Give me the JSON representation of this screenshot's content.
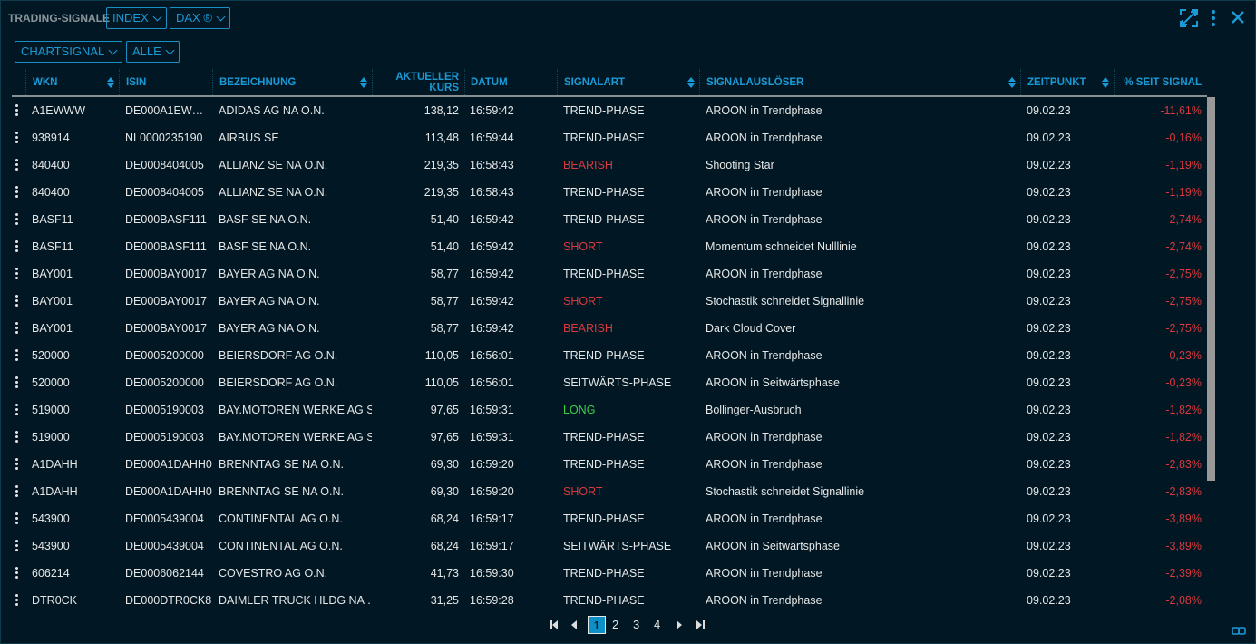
{
  "header": {
    "title": "TRADING-SIGNALE",
    "filters": [
      "INDEX",
      "DAX ®"
    ],
    "subfilters": [
      "CHARTSIGNAL",
      "ALLE"
    ],
    "icons": [
      "expand-icon",
      "more-vertical-icon",
      "close-icon"
    ]
  },
  "colors": {
    "accent": "#1a9ad6",
    "negative": "#d9383d",
    "positive": "#3ccf48",
    "background": "#011824"
  },
  "table": {
    "columns": [
      "WKN",
      "ISIN",
      "BEZEICHNUNG",
      "AKTUELLER KURS",
      "DATUM",
      "SIGNALART",
      "SIGNALAUSLÖSER",
      "ZEITPUNKT",
      "% SEIT SIGNAL"
    ],
    "rows": [
      [
        "A1EWWW",
        "DE000A1EW…",
        "ADIDAS AG NA O.N.",
        "138,12",
        "16:59:42",
        "TREND-PHASE",
        "AROON in Trendphase",
        "09.02.23",
        "-11,61%"
      ],
      [
        "938914",
        "NL0000235190",
        "AIRBUS SE",
        "113,48",
        "16:59:44",
        "TREND-PHASE",
        "AROON in Trendphase",
        "09.02.23",
        "-0,16%"
      ],
      [
        "840400",
        "DE0008404005",
        "ALLIANZ SE NA O.N.",
        "219,35",
        "16:58:43",
        "BEARISH",
        "Shooting Star",
        "09.02.23",
        "-1,19%"
      ],
      [
        "840400",
        "DE0008404005",
        "ALLIANZ SE NA O.N.",
        "219,35",
        "16:58:43",
        "TREND-PHASE",
        "AROON in Trendphase",
        "09.02.23",
        "-1,19%"
      ],
      [
        "BASF11",
        "DE000BASF111",
        "BASF SE NA O.N.",
        "51,40",
        "16:59:42",
        "TREND-PHASE",
        "AROON in Trendphase",
        "09.02.23",
        "-2,74%"
      ],
      [
        "BASF11",
        "DE000BASF111",
        "BASF SE NA O.N.",
        "51,40",
        "16:59:42",
        "SHORT",
        "Momentum schneidet Nulllinie",
        "09.02.23",
        "-2,74%"
      ],
      [
        "BAY001",
        "DE000BAY0017",
        "BAYER AG NA O.N.",
        "58,77",
        "16:59:42",
        "TREND-PHASE",
        "AROON in Trendphase",
        "09.02.23",
        "-2,75%"
      ],
      [
        "BAY001",
        "DE000BAY0017",
        "BAYER AG NA O.N.",
        "58,77",
        "16:59:42",
        "SHORT",
        "Stochastik schneidet Signallinie",
        "09.02.23",
        "-2,75%"
      ],
      [
        "BAY001",
        "DE000BAY0017",
        "BAYER AG NA O.N.",
        "58,77",
        "16:59:42",
        "BEARISH",
        "Dark Cloud Cover",
        "09.02.23",
        "-2,75%"
      ],
      [
        "520000",
        "DE0005200000",
        "BEIERSDORF AG O.N.",
        "110,05",
        "16:56:01",
        "TREND-PHASE",
        "AROON in Trendphase",
        "09.02.23",
        "-0,23%"
      ],
      [
        "520000",
        "DE0005200000",
        "BEIERSDORF AG O.N.",
        "110,05",
        "16:56:01",
        "SEITWÄRTS-PHASE",
        "AROON in Seitwärtsphase",
        "09.02.23",
        "-0,23%"
      ],
      [
        "519000",
        "DE0005190003",
        "BAY.MOTOREN WERKE AG ST",
        "97,65",
        "16:59:31",
        "LONG",
        "Bollinger-Ausbruch",
        "09.02.23",
        "-1,82%"
      ],
      [
        "519000",
        "DE0005190003",
        "BAY.MOTOREN WERKE AG ST",
        "97,65",
        "16:59:31",
        "TREND-PHASE",
        "AROON in Trendphase",
        "09.02.23",
        "-1,82%"
      ],
      [
        "A1DAHH",
        "DE000A1DAHH0",
        "BRENNTAG SE NA O.N.",
        "69,30",
        "16:59:20",
        "TREND-PHASE",
        "AROON in Trendphase",
        "09.02.23",
        "-2,83%"
      ],
      [
        "A1DAHH",
        "DE000A1DAHH0",
        "BRENNTAG SE NA O.N.",
        "69,30",
        "16:59:20",
        "SHORT",
        "Stochastik schneidet Signallinie",
        "09.02.23",
        "-2,83%"
      ],
      [
        "543900",
        "DE0005439004",
        "CONTINENTAL AG O.N.",
        "68,24",
        "16:59:17",
        "TREND-PHASE",
        "AROON in Trendphase",
        "09.02.23",
        "-3,89%"
      ],
      [
        "543900",
        "DE0005439004",
        "CONTINENTAL AG O.N.",
        "68,24",
        "16:59:17",
        "SEITWÄRTS-PHASE",
        "AROON in Seitwärtsphase",
        "09.02.23",
        "-3,89%"
      ],
      [
        "606214",
        "DE0006062144",
        "COVESTRO AG O.N.",
        "41,73",
        "16:59:30",
        "TREND-PHASE",
        "AROON in Trendphase",
        "09.02.23",
        "-2,39%"
      ],
      [
        "DTR0CK",
        "DE000DTR0CK8",
        "DAIMLER TRUCK HLDG NA …",
        "31,25",
        "16:59:28",
        "TREND-PHASE",
        "AROON in Trendphase",
        "09.02.23",
        "-2,08%"
      ]
    ]
  },
  "pagination": {
    "pages": [
      "1",
      "2",
      "3",
      "4"
    ],
    "current": "1"
  }
}
